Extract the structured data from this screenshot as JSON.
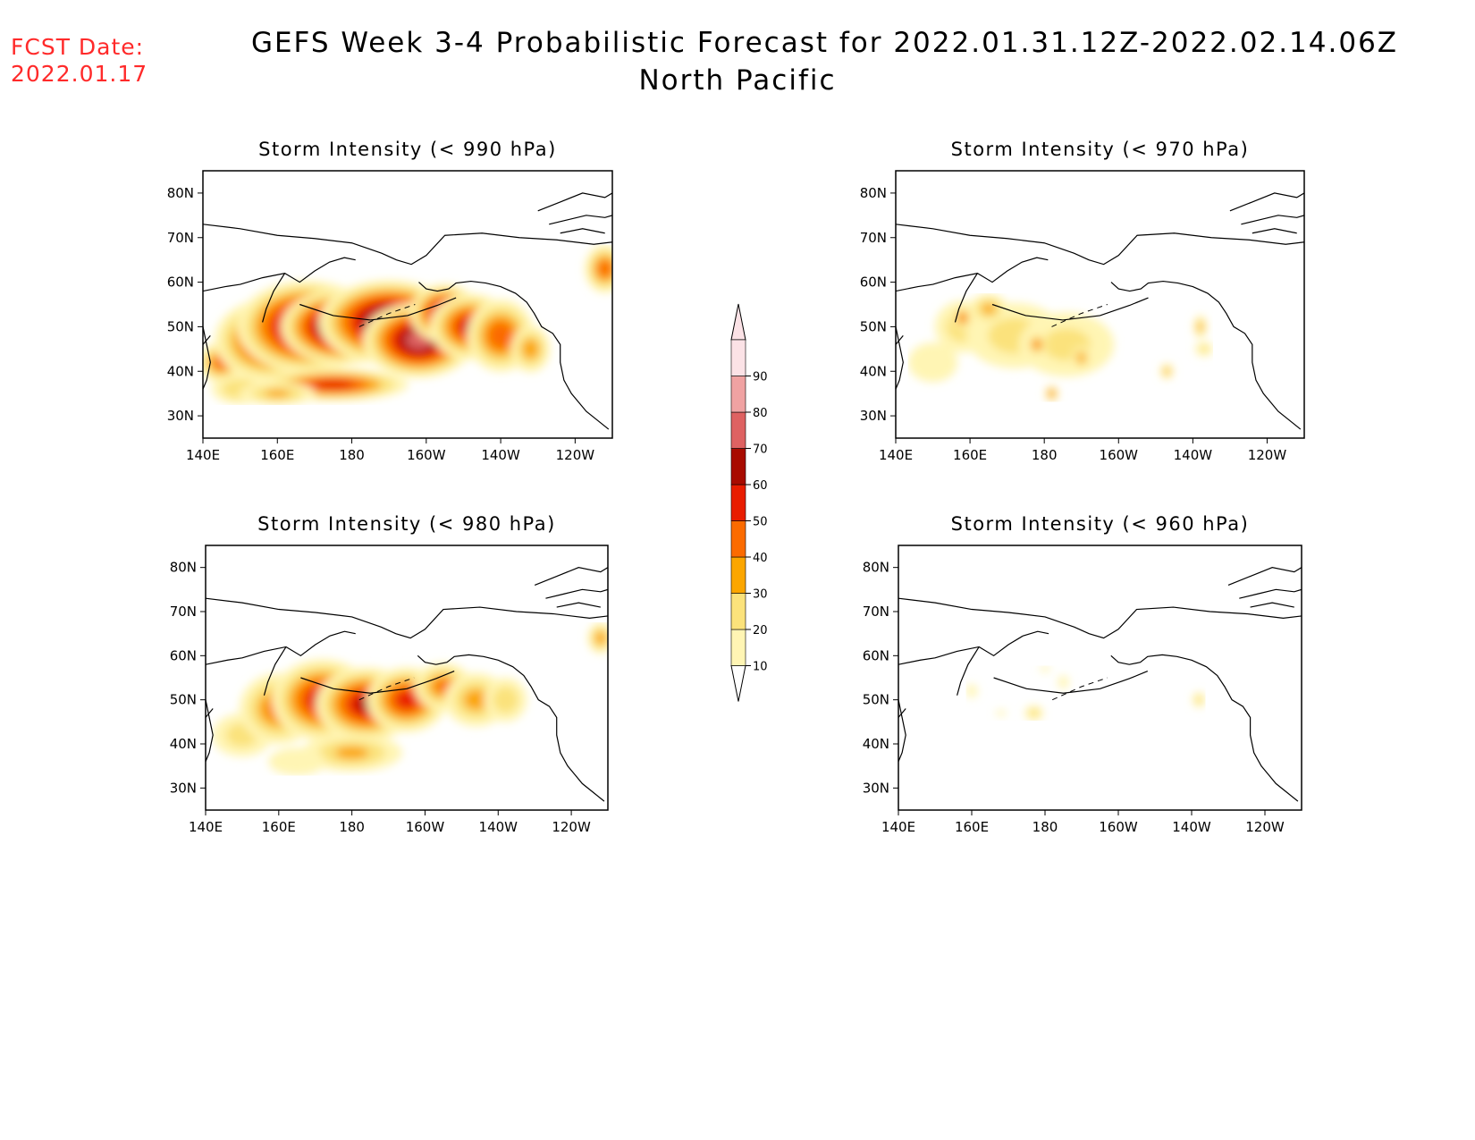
{
  "header": {
    "fcst_label": "FCST Date:",
    "fcst_date": "2022.01.17",
    "title_line1": "GEFS Week 3-4 Probabilistic Forecast for 2022.01.31.12Z-2022.02.14.06Z",
    "title_line2": "North Pacific"
  },
  "axes": {
    "lon_labels": [
      "140E",
      "160E",
      "180",
      "160W",
      "140W",
      "120W"
    ],
    "lon_values": [
      140,
      160,
      180,
      200,
      220,
      240
    ],
    "lat_labels": [
      "30N",
      "40N",
      "50N",
      "60N",
      "70N",
      "80N"
    ],
    "lat_values": [
      30,
      40,
      50,
      60,
      70,
      80
    ],
    "lon_range": [
      140,
      250
    ],
    "lat_range": [
      25,
      85
    ]
  },
  "colorbar": {
    "levels": [
      10,
      20,
      30,
      40,
      50,
      60,
      70,
      80,
      90
    ],
    "labels": [
      "10",
      "20",
      "30",
      "40",
      "50",
      "60",
      "70",
      "80",
      "90"
    ],
    "colors": [
      "#fff5b4",
      "#fbe27b",
      "#fba600",
      "#fb6b00",
      "#e81d00",
      "#a80b00",
      "#de6262",
      "#f0a2a2",
      "#fbe2e6"
    ]
  },
  "panels": [
    {
      "title": "Storm Intensity (< 990 hPa)",
      "blobs": [
        {
          "lon": 145,
          "lat": 42,
          "rlon": 7,
          "rlat": 5,
          "p": 45
        },
        {
          "lon": 150,
          "lat": 36,
          "rlon": 9,
          "rlat": 4,
          "p": 28
        },
        {
          "lon": 158,
          "lat": 47,
          "rlon": 16,
          "rlat": 10,
          "p": 64
        },
        {
          "lon": 168,
          "lat": 50,
          "rlon": 20,
          "rlat": 11,
          "p": 80
        },
        {
          "lon": 178,
          "lat": 50,
          "rlon": 18,
          "rlat": 9,
          "p": 93
        },
        {
          "lon": 190,
          "lat": 51,
          "rlon": 20,
          "rlat": 10,
          "p": 85
        },
        {
          "lon": 198,
          "lat": 47,
          "rlon": 16,
          "rlat": 9,
          "p": 78
        },
        {
          "lon": 205,
          "lat": 53,
          "rlon": 10,
          "rlat": 7,
          "p": 72
        },
        {
          "lon": 212,
          "lat": 50,
          "rlon": 12,
          "rlat": 8,
          "p": 60
        },
        {
          "lon": 220,
          "lat": 48,
          "rlon": 10,
          "rlat": 9,
          "p": 48
        },
        {
          "lon": 228,
          "lat": 45,
          "rlon": 6,
          "rlat": 6,
          "p": 35
        },
        {
          "lon": 175,
          "lat": 37,
          "rlon": 22,
          "rlat": 4,
          "p": 55
        },
        {
          "lon": 160,
          "lat": 35,
          "rlon": 12,
          "rlat": 3,
          "p": 30
        },
        {
          "lon": 248,
          "lat": 63,
          "rlon": 6,
          "rlat": 6,
          "p": 45
        }
      ]
    },
    {
      "title": "Storm Intensity (< 970 hPa)",
      "blobs": [
        {
          "lon": 158,
          "lat": 50,
          "rlon": 9,
          "rlat": 7,
          "p": 24
        },
        {
          "lon": 172,
          "lat": 48,
          "rlon": 16,
          "rlat": 9,
          "p": 22
        },
        {
          "lon": 186,
          "lat": 46,
          "rlon": 16,
          "rlat": 9,
          "p": 20
        },
        {
          "lon": 150,
          "lat": 42,
          "rlon": 9,
          "rlat": 6,
          "p": 14
        },
        {
          "lon": 165,
          "lat": 54,
          "rlon": 6,
          "rlat": 4,
          "p": 30
        },
        {
          "lon": 178,
          "lat": 46,
          "rlon": 3,
          "rlat": 3,
          "p": 40
        },
        {
          "lon": 158,
          "lat": 52,
          "rlon": 3,
          "rlat": 3,
          "p": 42
        },
        {
          "lon": 190,
          "lat": 43,
          "rlon": 3,
          "rlat": 3,
          "p": 35
        },
        {
          "lon": 182,
          "lat": 35,
          "rlon": 2,
          "rlat": 2,
          "p": 42
        },
        {
          "lon": 213,
          "lat": 40,
          "rlon": 2,
          "rlat": 2,
          "p": 32
        },
        {
          "lon": 222,
          "lat": 50,
          "rlon": 2,
          "rlat": 3,
          "p": 32
        },
        {
          "lon": 223,
          "lat": 45,
          "rlon": 3,
          "rlat": 2,
          "p": 20
        }
      ]
    },
    {
      "title": "Storm Intensity (< 980 hPa)",
      "blobs": [
        {
          "lon": 150,
          "lat": 42,
          "rlon": 10,
          "rlat": 6,
          "p": 22
        },
        {
          "lon": 160,
          "lat": 48,
          "rlon": 12,
          "rlat": 9,
          "p": 42
        },
        {
          "lon": 172,
          "lat": 50,
          "rlon": 15,
          "rlat": 10,
          "p": 60
        },
        {
          "lon": 184,
          "lat": 49,
          "rlon": 15,
          "rlat": 9,
          "p": 63
        },
        {
          "lon": 195,
          "lat": 50,
          "rlon": 12,
          "rlat": 8,
          "p": 55
        },
        {
          "lon": 205,
          "lat": 53,
          "rlon": 9,
          "rlat": 6,
          "p": 40
        },
        {
          "lon": 214,
          "lat": 50,
          "rlon": 10,
          "rlat": 7,
          "p": 33
        },
        {
          "lon": 222,
          "lat": 50,
          "rlon": 7,
          "rlat": 6,
          "p": 25
        },
        {
          "lon": 180,
          "lat": 38,
          "rlon": 16,
          "rlat": 5,
          "p": 30
        },
        {
          "lon": 165,
          "lat": 36,
          "rlon": 10,
          "rlat": 4,
          "p": 18
        },
        {
          "lon": 248,
          "lat": 64,
          "rlon": 4,
          "rlat": 4,
          "p": 35
        }
      ]
    },
    {
      "title": "Storm Intensity (< 960 hPa)",
      "blobs": [
        {
          "lon": 160,
          "lat": 52,
          "rlon": 2,
          "rlat": 2,
          "p": 16
        },
        {
          "lon": 177,
          "lat": 47,
          "rlon": 3,
          "rlat": 2,
          "p": 25
        },
        {
          "lon": 168,
          "lat": 47,
          "rlon": 2,
          "rlat": 1,
          "p": 12
        },
        {
          "lon": 180,
          "lat": 57,
          "rlon": 2,
          "rlat": 1,
          "p": 12
        },
        {
          "lon": 185,
          "lat": 54,
          "rlon": 2,
          "rlat": 2,
          "p": 14
        },
        {
          "lon": 222,
          "lat": 50,
          "rlon": 2,
          "rlat": 2,
          "p": 28
        }
      ]
    }
  ]
}
